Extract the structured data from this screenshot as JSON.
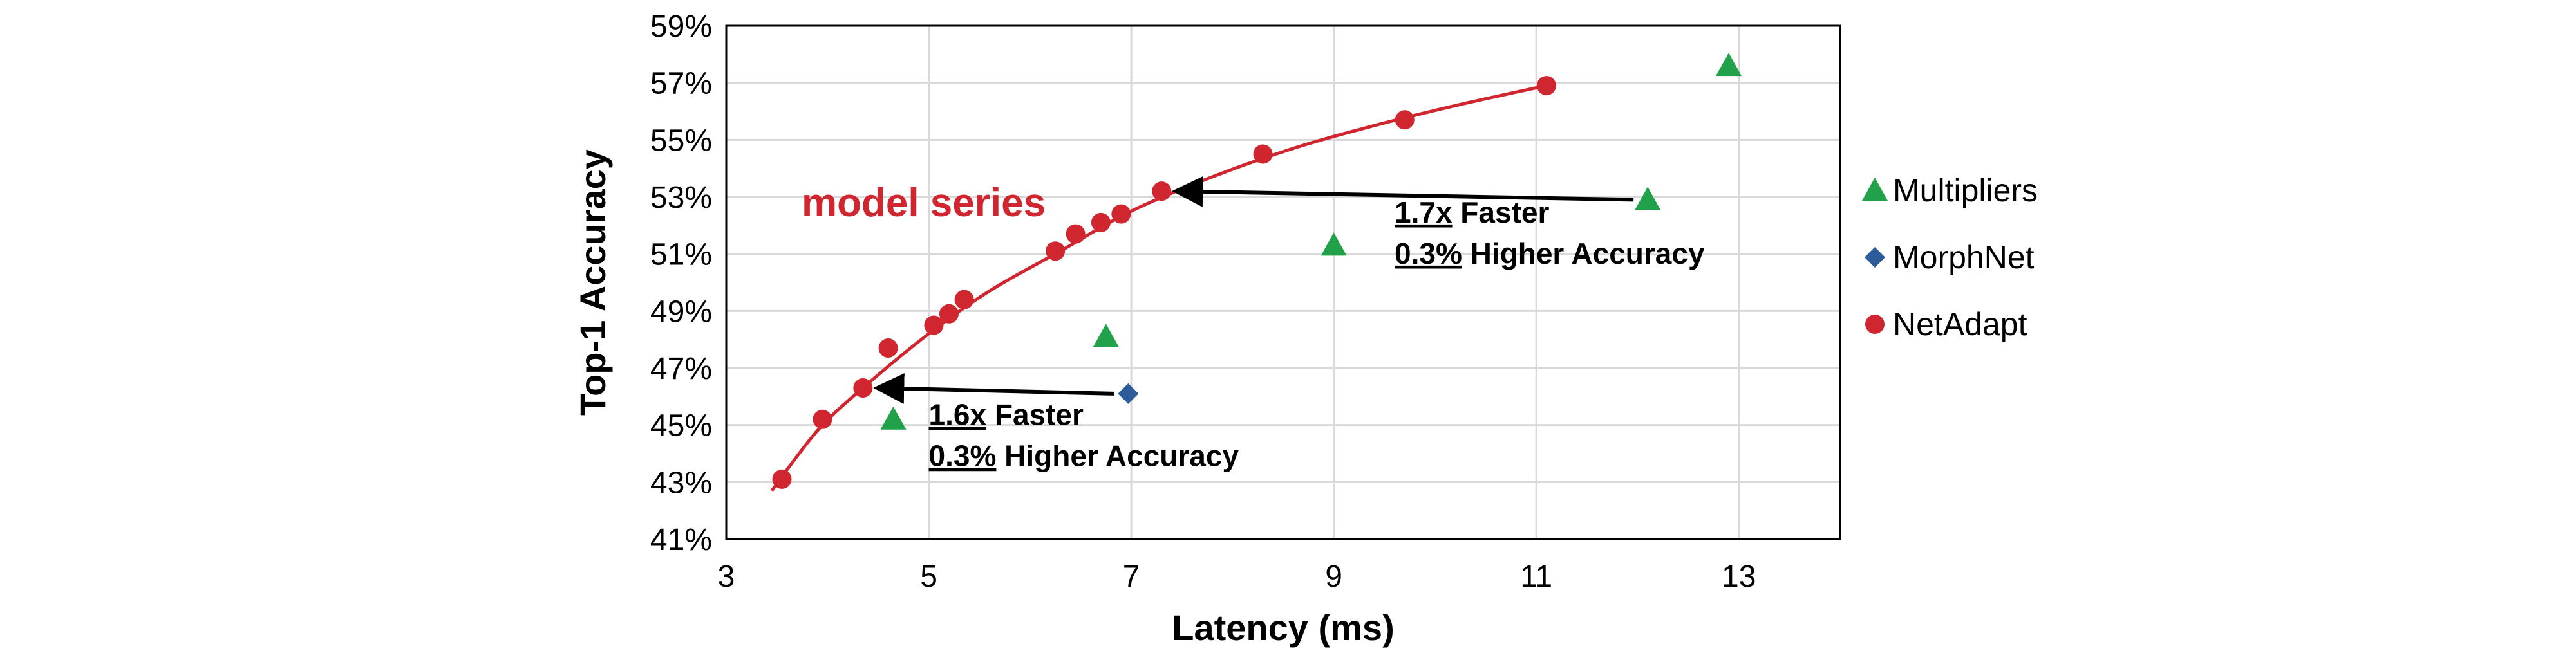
{
  "chart_data": {
    "type": "scatter",
    "title": "",
    "xlabel": "Latency (ms)",
    "ylabel": "Top-1 Accuracy",
    "xlim": [
      3,
      14
    ],
    "ylim": [
      41,
      59
    ],
    "x_ticks": [
      3,
      5,
      7,
      9,
      11,
      13
    ],
    "x_tick_labels": [
      "3",
      "5",
      "7",
      "9",
      "11",
      "13"
    ],
    "y_ticks": [
      41,
      43,
      45,
      47,
      49,
      51,
      53,
      55,
      57,
      59
    ],
    "y_tick_labels": [
      "41%",
      "43%",
      "45%",
      "47%",
      "49%",
      "51%",
      "53%",
      "55%",
      "57%",
      "59%"
    ],
    "grid": true,
    "legend_position": "right",
    "series": [
      {
        "name": "Multipliers",
        "marker": "triangle",
        "color": "#21a24a",
        "points": [
          {
            "x": 4.65,
            "y": 45.2
          },
          {
            "x": 6.75,
            "y": 48.1
          },
          {
            "x": 9.0,
            "y": 51.3
          },
          {
            "x": 12.1,
            "y": 52.9
          },
          {
            "x": 12.9,
            "y": 57.6
          }
        ]
      },
      {
        "name": "MorphNet",
        "marker": "diamond",
        "color": "#2e5c9b",
        "points": [
          {
            "x": 6.97,
            "y": 46.1
          }
        ]
      },
      {
        "name": "NetAdapt",
        "marker": "circle",
        "color": "#d0262f",
        "points": [
          {
            "x": 3.55,
            "y": 43.1
          },
          {
            "x": 3.95,
            "y": 45.2
          },
          {
            "x": 4.35,
            "y": 46.3
          },
          {
            "x": 4.6,
            "y": 47.7
          },
          {
            "x": 5.05,
            "y": 48.5
          },
          {
            "x": 5.2,
            "y": 48.9
          },
          {
            "x": 5.35,
            "y": 49.4
          },
          {
            "x": 6.25,
            "y": 51.1
          },
          {
            "x": 6.45,
            "y": 51.7
          },
          {
            "x": 6.7,
            "y": 52.1
          },
          {
            "x": 6.9,
            "y": 52.4
          },
          {
            "x": 7.3,
            "y": 53.2
          },
          {
            "x": 8.3,
            "y": 54.5
          },
          {
            "x": 9.7,
            "y": 55.7
          },
          {
            "x": 11.1,
            "y": 56.9
          }
        ]
      }
    ],
    "curve": {
      "color": "#d0262f",
      "points": [
        {
          "x": 3.45,
          "y": 42.7
        },
        {
          "x": 3.9,
          "y": 44.8
        },
        {
          "x": 4.35,
          "y": 46.3
        },
        {
          "x": 5.0,
          "y": 48.2
        },
        {
          "x": 5.6,
          "y": 49.7
        },
        {
          "x": 6.3,
          "y": 51.1
        },
        {
          "x": 7.0,
          "y": 52.5
        },
        {
          "x": 7.8,
          "y": 53.7
        },
        {
          "x": 8.6,
          "y": 54.7
        },
        {
          "x": 9.4,
          "y": 55.5
        },
        {
          "x": 10.2,
          "y": 56.2
        },
        {
          "x": 11.1,
          "y": 56.9
        }
      ]
    },
    "series_label": "model series",
    "annotations": [
      {
        "id": "upper",
        "arrow_from": {
          "x": 12.1,
          "y": 52.9
        },
        "arrow_to": {
          "x": 7.3,
          "y": 53.2
        },
        "text_at": {
          "x": 9.6,
          "y": 52.1
        },
        "line1_value": "1.7x",
        "line1_rest": " Faster",
        "line2_value": "0.3%",
        "line2_rest": " Higher Accuracy"
      },
      {
        "id": "lower",
        "arrow_from": {
          "x": 6.97,
          "y": 46.1
        },
        "arrow_to": {
          "x": 4.35,
          "y": 46.3
        },
        "text_at": {
          "x": 5.0,
          "y": 45.0
        },
        "line1_value": "1.6x",
        "line1_rest": " Faster",
        "line2_value": "0.3%",
        "line2_rest": " Higher Accuracy"
      }
    ]
  }
}
